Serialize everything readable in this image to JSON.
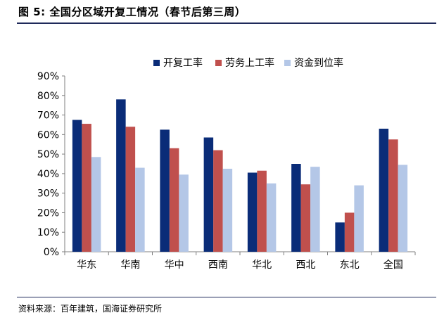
{
  "figure": {
    "title": "图 5:  全国分区域开复工情况（春节后第三周）",
    "source": "资料来源：百年建筑，国海证券研究所"
  },
  "chart_data": {
    "type": "bar",
    "categories": [
      "华东",
      "华南",
      "华中",
      "西南",
      "华北",
      "西北",
      "东北",
      "全国"
    ],
    "series": [
      {
        "name": "开复工率",
        "color": "#0a2c78",
        "values": [
          0.675,
          0.78,
          0.625,
          0.585,
          0.405,
          0.45,
          0.15,
          0.63
        ]
      },
      {
        "name": "劳务上工率",
        "color": "#c0504d",
        "values": [
          0.655,
          0.64,
          0.53,
          0.52,
          0.415,
          0.345,
          0.2,
          0.575
        ]
      },
      {
        "name": "资金到位率",
        "color": "#b4c7e7",
        "values": [
          0.485,
          0.43,
          0.395,
          0.425,
          0.35,
          0.435,
          0.34,
          0.445
        ]
      }
    ],
    "ylim": [
      0,
      0.9
    ],
    "yticks": [
      "0%",
      "10%",
      "20%",
      "30%",
      "40%",
      "50%",
      "60%",
      "70%",
      "80%",
      "90%"
    ],
    "legend_position": "top",
    "grid": false
  }
}
